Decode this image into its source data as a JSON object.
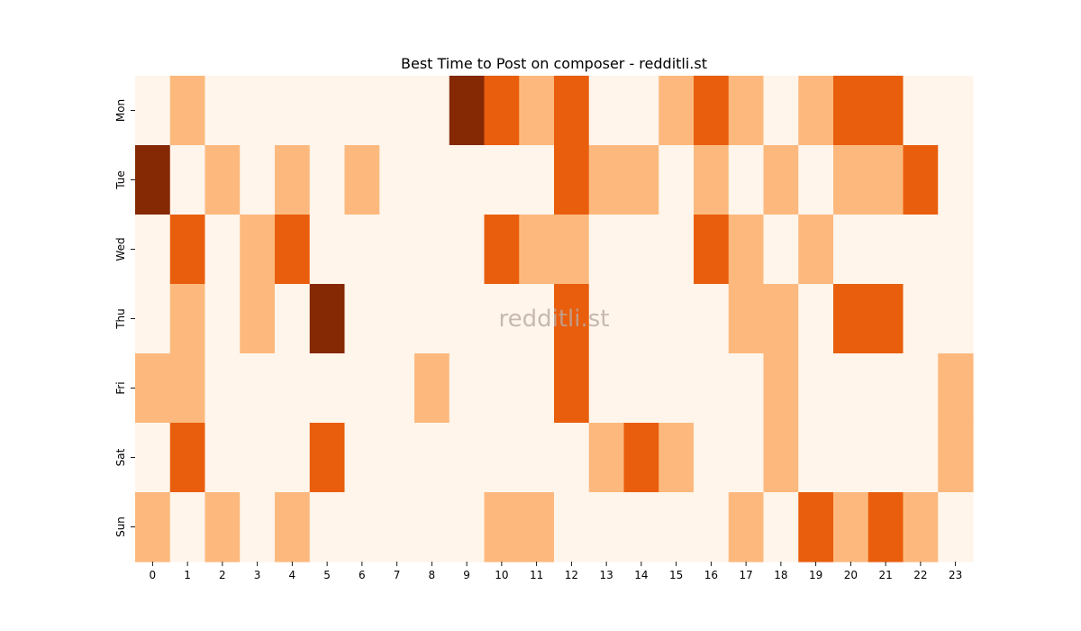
{
  "chart_data": {
    "type": "heatmap",
    "title": "Best Time to Post on composer - redditli.st",
    "watermark": "redditli.st",
    "x_labels": [
      "0",
      "1",
      "2",
      "3",
      "4",
      "5",
      "6",
      "7",
      "8",
      "9",
      "10",
      "11",
      "12",
      "13",
      "14",
      "15",
      "16",
      "17",
      "18",
      "19",
      "20",
      "21",
      "22",
      "23"
    ],
    "y_labels": [
      "Mon",
      "Tue",
      "Wed",
      "Thu",
      "Fri",
      "Sat",
      "Sun"
    ],
    "values": [
      [
        0,
        1,
        0,
        0,
        0,
        0,
        0,
        0,
        0,
        3,
        2,
        1,
        2,
        0,
        0,
        1,
        2,
        1,
        0,
        1,
        2,
        2,
        0,
        0
      ],
      [
        3,
        0,
        1,
        0,
        1,
        0,
        1,
        0,
        0,
        0,
        0,
        0,
        2,
        1,
        1,
        0,
        1,
        0,
        1,
        0,
        1,
        1,
        2,
        0
      ],
      [
        0,
        2,
        0,
        1,
        2,
        0,
        0,
        0,
        0,
        0,
        2,
        1,
        1,
        0,
        0,
        0,
        2,
        1,
        0,
        1,
        0,
        0,
        0,
        0
      ],
      [
        0,
        1,
        0,
        1,
        0,
        3,
        0,
        0,
        0,
        0,
        0,
        0,
        2,
        0,
        0,
        0,
        0,
        1,
        1,
        0,
        2,
        2,
        0,
        0
      ],
      [
        1,
        1,
        0,
        0,
        0,
        0,
        0,
        0,
        1,
        0,
        0,
        0,
        2,
        0,
        0,
        0,
        0,
        0,
        1,
        0,
        0,
        0,
        0,
        1
      ],
      [
        0,
        2,
        0,
        0,
        0,
        2,
        0,
        0,
        0,
        0,
        0,
        0,
        0,
        1,
        2,
        1,
        0,
        0,
        1,
        0,
        0,
        0,
        0,
        1
      ],
      [
        1,
        0,
        1,
        0,
        1,
        0,
        0,
        0,
        0,
        0,
        1,
        1,
        0,
        0,
        0,
        0,
        0,
        1,
        0,
        2,
        1,
        2,
        1,
        0
      ]
    ],
    "colormap": [
      "#fff5eb",
      "#fdb97d",
      "#e95e0d",
      "#842904"
    ],
    "value_range": [
      0,
      3
    ],
    "colorbar": false,
    "grid": false
  }
}
